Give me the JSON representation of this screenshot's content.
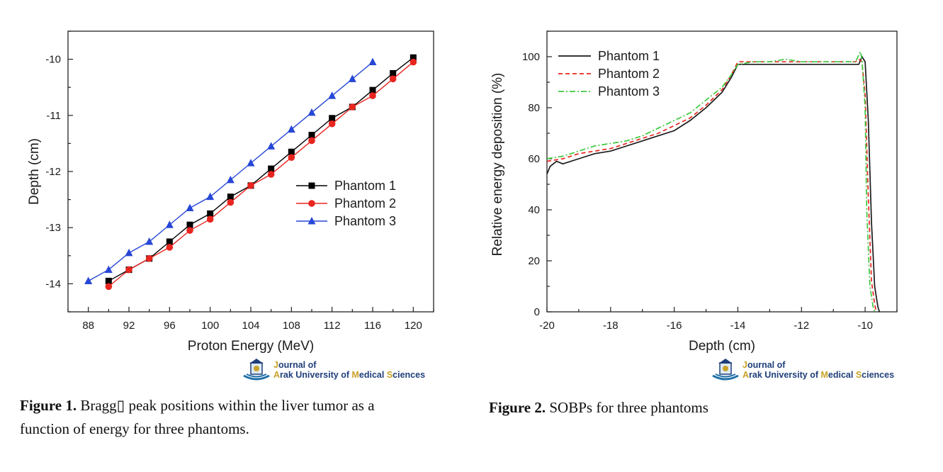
{
  "journal": {
    "line1_first": "J",
    "line1_rest": "ournal of",
    "line2_a_first": "A",
    "line2_a_rest": "rak University of ",
    "line2_m_first": "M",
    "line2_m_rest": "edical ",
    "line2_s_first": "S",
    "line2_s_rest": "ciences"
  },
  "captions": {
    "fig1_label": "Figure 1.",
    "fig1_line1": " Bragg▯ peak positions within the liver tumor as a",
    "fig1_line2": "function of energy for three phantoms.",
    "fig2_label": "Figure 2.",
    "fig2_text": " SOBPs for three phantoms"
  },
  "chart_data": [
    {
      "type": "line",
      "title": "",
      "xlabel": "Proton Energy (MeV)",
      "ylabel": "Depth (cm)",
      "xlim": [
        86,
        122
      ],
      "ylim": [
        -14.5,
        -9.5
      ],
      "xticks": [
        88,
        92,
        96,
        100,
        104,
        108,
        112,
        116,
        120
      ],
      "yticks": [
        -14,
        -13,
        -12,
        -11,
        -10
      ],
      "legend_position": "center-right",
      "grid": false,
      "series": [
        {
          "name": "Phantom 1",
          "color": "#000000",
          "marker": "square",
          "x": [
            90,
            92,
            94,
            96,
            98,
            100,
            102,
            104,
            106,
            108,
            110,
            112,
            114,
            116,
            118,
            120
          ],
          "y": [
            -13.95,
            -13.75,
            -13.55,
            -13.25,
            -12.95,
            -12.75,
            -12.45,
            -12.25,
            -11.95,
            -11.65,
            -11.35,
            -11.05,
            -10.85,
            -10.55,
            -10.25,
            -9.97
          ]
        },
        {
          "name": "Phantom 2",
          "color": "#e8251f",
          "marker": "circle",
          "x": [
            90,
            92,
            94,
            96,
            98,
            100,
            102,
            104,
            106,
            108,
            110,
            112,
            114,
            116,
            118,
            120
          ],
          "y": [
            -14.05,
            -13.75,
            -13.55,
            -13.35,
            -13.05,
            -12.85,
            -12.55,
            -12.25,
            -12.05,
            -11.75,
            -11.45,
            -11.15,
            -10.85,
            -10.65,
            -10.35,
            -10.05
          ]
        },
        {
          "name": "Phantom 3",
          "color": "#2747d6",
          "marker": "triangle",
          "x": [
            88,
            90,
            92,
            94,
            96,
            98,
            100,
            102,
            104,
            106,
            108,
            110,
            112,
            114,
            116
          ],
          "y": [
            -13.95,
            -13.75,
            -13.45,
            -13.25,
            -12.95,
            -12.65,
            -12.45,
            -12.15,
            -11.85,
            -11.55,
            -11.25,
            -10.95,
            -10.65,
            -10.35,
            -10.05
          ]
        }
      ]
    },
    {
      "type": "line",
      "title": "",
      "xlabel": "Depth (cm)",
      "ylabel": "Relative energy deposition (%)",
      "xlim": [
        -20,
        -9
      ],
      "ylim": [
        0,
        110
      ],
      "xticks": [
        -20,
        -18,
        -16,
        -14,
        -12,
        -10
      ],
      "yticks": [
        0,
        20,
        40,
        60,
        80,
        100
      ],
      "legend_position": "top-left",
      "grid": false,
      "series": [
        {
          "name": "Phantom 1",
          "color": "#1a1a1a",
          "dash": "",
          "x": [
            -20,
            -19.9,
            -19.7,
            -19.5,
            -19.0,
            -18.5,
            -18.0,
            -17.5,
            -17.0,
            -16.5,
            -16.0,
            -15.5,
            -15.0,
            -14.5,
            -14.2,
            -14.0,
            -13.5,
            -13.0,
            -12.5,
            -12.0,
            -11.5,
            -11.0,
            -10.5,
            -10.2,
            -10.1,
            -10.0,
            -9.9,
            -9.8,
            -9.7,
            -9.6,
            -9.55
          ],
          "y": [
            54,
            57,
            59,
            58,
            60,
            62,
            63,
            65,
            67,
            69,
            71,
            75,
            80,
            86,
            92,
            97,
            97,
            97,
            97,
            97,
            97,
            97,
            97,
            97,
            100,
            98,
            75,
            35,
            10,
            2,
            0
          ]
        },
        {
          "name": "Phantom 2",
          "color": "#e8251f",
          "dash": "6,4",
          "x": [
            -20,
            -19.5,
            -19.0,
            -18.5,
            -18.0,
            -17.5,
            -17.0,
            -16.5,
            -16.0,
            -15.5,
            -15.0,
            -14.5,
            -14.2,
            -14.0,
            -13.5,
            -13.0,
            -12.5,
            -12.0,
            -11.5,
            -11.0,
            -10.5,
            -10.3,
            -10.2,
            -10.1,
            -10.0,
            -9.9,
            -9.8,
            -9.7,
            -9.65
          ],
          "y": [
            59,
            60,
            62,
            63,
            64,
            66,
            68,
            70,
            73,
            76,
            81,
            87,
            93,
            98,
            98,
            98,
            98,
            98,
            98,
            98,
            98,
            98,
            99,
            98,
            85,
            45,
            12,
            3,
            0
          ]
        },
        {
          "name": "Phantom 3",
          "color": "#3ec93e",
          "dash": "8,3,2,3",
          "x": [
            -20,
            -19.5,
            -19.0,
            -18.5,
            -18.0,
            -17.5,
            -17.0,
            -16.5,
            -16.0,
            -15.5,
            -15.0,
            -14.5,
            -14.2,
            -14.0,
            -13.5,
            -13.0,
            -12.5,
            -12.0,
            -11.5,
            -11.0,
            -10.5,
            -10.3,
            -10.15,
            -10.1,
            -10.0,
            -9.95,
            -9.85,
            -9.75,
            -9.7
          ],
          "y": [
            60,
            61,
            63,
            65,
            66,
            67,
            69,
            72,
            75,
            78,
            83,
            88,
            93,
            97,
            98,
            98,
            99,
            98,
            98,
            98,
            98,
            98,
            102,
            99,
            80,
            40,
            10,
            2,
            0
          ]
        }
      ]
    }
  ]
}
